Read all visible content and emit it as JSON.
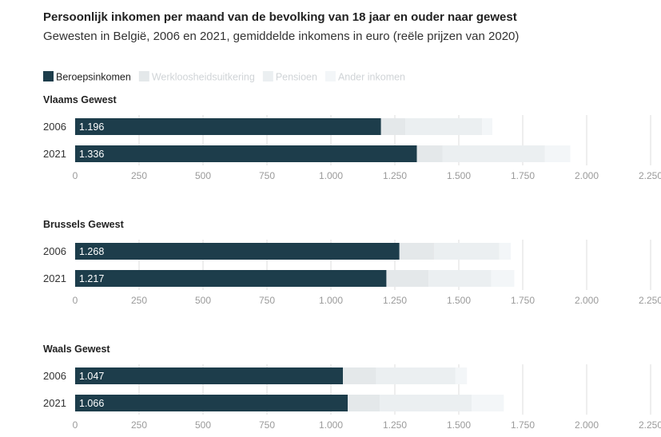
{
  "header": {
    "title": "Persoonlijk inkomen per maand van de bevolking van 18 jaar en ouder naar gewest",
    "subtitle": "Gewesten in België, 2006 en 2021, gemiddelde inkomens in euro (reële prijzen van 2020)"
  },
  "colors": {
    "beroepsinkomen": "#1d3d4b",
    "werkloosheidsuitkering": "#e4e8ea",
    "pensioen": "#ebeff1",
    "ander_inkomen": "#f3f6f8",
    "grid": "#dcdcdc",
    "axis_text": "#9a9a9a"
  },
  "chart_data": {
    "type": "bar",
    "stacked": true,
    "orientation": "horizontal",
    "title": "Persoonlijk inkomen per maand van de bevolking van 18 jaar en ouder naar gewest",
    "subtitle": "Gewesten in België, 2006 en 2021, gemiddelde inkomens in euro (reële prijzen van 2020)",
    "legend": {
      "position": "top-left",
      "entries": [
        "Beroepsinkomen",
        "Werkloosheidsuitkering",
        "Pensioen",
        "Ander inkomen"
      ]
    },
    "xlim": [
      0,
      2250
    ],
    "xticks": [
      0,
      250,
      500,
      750,
      1000,
      1250,
      1500,
      1750,
      2000,
      2250
    ],
    "xtick_labels": [
      "0",
      "250",
      "500",
      "750",
      "1.000",
      "1.250",
      "1.500",
      "1.750",
      "2.000",
      "2.250"
    ],
    "grid": true,
    "panels": [
      {
        "name": "Vlaams Gewest",
        "categories": [
          "2006",
          "2021"
        ],
        "series": [
          {
            "name": "Beroepsinkomen",
            "values": [
              1196,
              1336
            ],
            "labels": [
              "1.196",
              "1.336"
            ]
          },
          {
            "name": "Werkloosheidsuitkering",
            "values": [
              95,
              100
            ]
          },
          {
            "name": "Pensioen",
            "values": [
              300,
              400
            ]
          },
          {
            "name": "Ander inkomen",
            "values": [
              40,
              100
            ]
          }
        ]
      },
      {
        "name": "Brussels Gewest",
        "categories": [
          "2006",
          "2021"
        ],
        "series": [
          {
            "name": "Beroepsinkomen",
            "values": [
              1268,
              1217
            ],
            "labels": [
              "1.268",
              "1.217"
            ]
          },
          {
            "name": "Werkloosheidsuitkering",
            "values": [
              135,
              165
            ]
          },
          {
            "name": "Pensioen",
            "values": [
              255,
              245
            ]
          },
          {
            "name": "Ander inkomen",
            "values": [
              45,
              90
            ]
          }
        ]
      },
      {
        "name": "Waals Gewest",
        "categories": [
          "2006",
          "2021"
        ],
        "series": [
          {
            "name": "Beroepsinkomen",
            "values": [
              1047,
              1066
            ],
            "labels": [
              "1.047",
              "1.066"
            ]
          },
          {
            "name": "Werkloosheidsuitkering",
            "values": [
              130,
              125
            ]
          },
          {
            "name": "Pensioen",
            "values": [
              310,
              360
            ]
          },
          {
            "name": "Ander inkomen",
            "values": [
              45,
              125
            ]
          }
        ]
      }
    ]
  }
}
